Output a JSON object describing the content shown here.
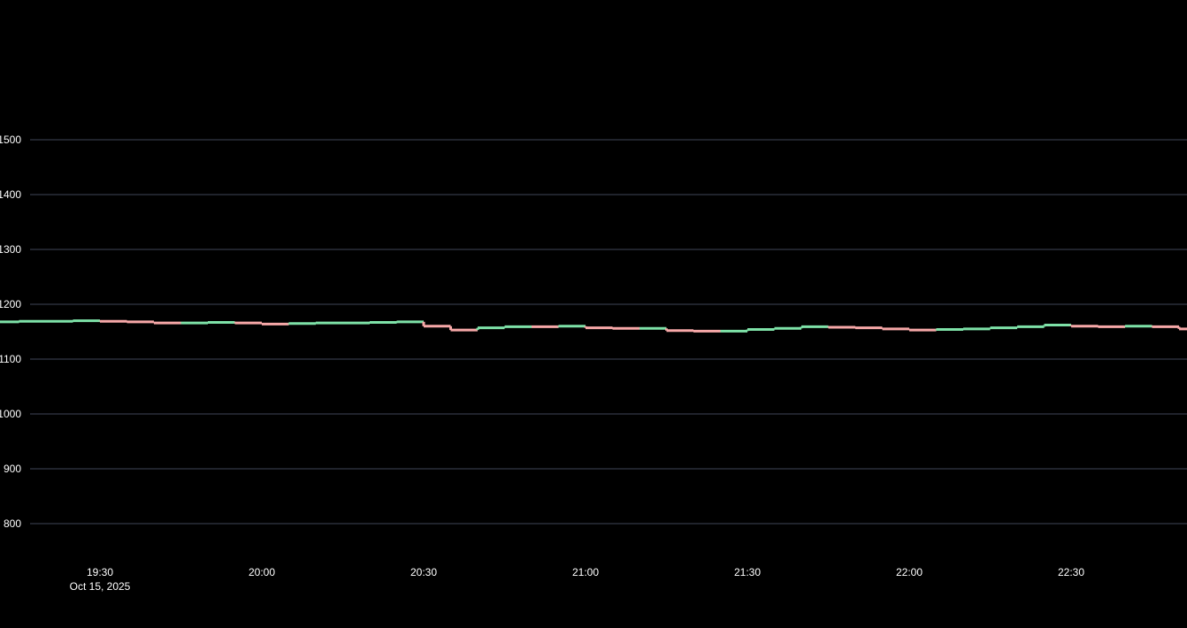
{
  "chart_data": {
    "type": "candlestick",
    "title": "",
    "xlabel": "",
    "ylabel": "",
    "x_range": [
      "2025-10-15T19:11",
      "2025-10-15T22:50"
    ],
    "y_range": [
      760,
      1500
    ],
    "y_ticks": [
      "1500",
      "1400",
      "1300",
      "1200",
      "1100",
      "1000",
      "900",
      "800"
    ],
    "y_tick_values": [
      1500,
      1400,
      1300,
      1200,
      1100,
      1000,
      900,
      800
    ],
    "x_ticks": [
      {
        "time": "2025-10-15T19:30",
        "label": "19:30",
        "sublabel": "Oct 15, 2025"
      },
      {
        "time": "2025-10-15T20:00",
        "label": "20:00",
        "sublabel": ""
      },
      {
        "time": "2025-10-15T20:30",
        "label": "20:30",
        "sublabel": ""
      },
      {
        "time": "2025-10-15T21:00",
        "label": "21:00",
        "sublabel": ""
      },
      {
        "time": "2025-10-15T21:30",
        "label": "21:30",
        "sublabel": ""
      },
      {
        "time": "2025-10-15T22:00",
        "label": "22:00",
        "sublabel": ""
      },
      {
        "time": "2025-10-15T22:30",
        "label": "22:30",
        "sublabel": ""
      }
    ],
    "grid": true,
    "colors": {
      "background": "#000000",
      "grid": "#2b2f3a",
      "text": "#ffffff",
      "up": "#7ee2a8",
      "down": "#f7a8a8"
    },
    "series": [
      {
        "name": "",
        "points": [
          {
            "t": "2025-10-15T19:11",
            "close": 1168,
            "dir": "up"
          },
          {
            "t": "2025-10-15T19:15",
            "close": 1169,
            "dir": "up"
          },
          {
            "t": "2025-10-15T19:20",
            "close": 1169,
            "dir": "up"
          },
          {
            "t": "2025-10-15T19:25",
            "close": 1170,
            "dir": "up"
          },
          {
            "t": "2025-10-15T19:30",
            "close": 1169,
            "dir": "down"
          },
          {
            "t": "2025-10-15T19:35",
            "close": 1168,
            "dir": "down"
          },
          {
            "t": "2025-10-15T19:40",
            "close": 1166,
            "dir": "down"
          },
          {
            "t": "2025-10-15T19:45",
            "close": 1166,
            "dir": "up"
          },
          {
            "t": "2025-10-15T19:50",
            "close": 1167,
            "dir": "up"
          },
          {
            "t": "2025-10-15T19:55",
            "close": 1166,
            "dir": "down"
          },
          {
            "t": "2025-10-15T20:00",
            "close": 1164,
            "dir": "down"
          },
          {
            "t": "2025-10-15T20:05",
            "close": 1165,
            "dir": "up"
          },
          {
            "t": "2025-10-15T20:10",
            "close": 1166,
            "dir": "up"
          },
          {
            "t": "2025-10-15T20:15",
            "close": 1166,
            "dir": "up"
          },
          {
            "t": "2025-10-15T20:20",
            "close": 1167,
            "dir": "up"
          },
          {
            "t": "2025-10-15T20:25",
            "close": 1168,
            "dir": "up"
          },
          {
            "t": "2025-10-15T20:30",
            "close": 1160,
            "dir": "down"
          },
          {
            "t": "2025-10-15T20:35",
            "close": 1153,
            "dir": "down"
          },
          {
            "t": "2025-10-15T20:40",
            "close": 1157,
            "dir": "up"
          },
          {
            "t": "2025-10-15T20:45",
            "close": 1159,
            "dir": "up"
          },
          {
            "t": "2025-10-15T20:50",
            "close": 1159,
            "dir": "down"
          },
          {
            "t": "2025-10-15T20:55",
            "close": 1160,
            "dir": "up"
          },
          {
            "t": "2025-10-15T21:00",
            "close": 1157,
            "dir": "down"
          },
          {
            "t": "2025-10-15T21:05",
            "close": 1156,
            "dir": "down"
          },
          {
            "t": "2025-10-15T21:10",
            "close": 1156,
            "dir": "up"
          },
          {
            "t": "2025-10-15T21:15",
            "close": 1152,
            "dir": "down"
          },
          {
            "t": "2025-10-15T21:20",
            "close": 1151,
            "dir": "down"
          },
          {
            "t": "2025-10-15T21:25",
            "close": 1151,
            "dir": "up"
          },
          {
            "t": "2025-10-15T21:30",
            "close": 1154,
            "dir": "up"
          },
          {
            "t": "2025-10-15T21:35",
            "close": 1156,
            "dir": "up"
          },
          {
            "t": "2025-10-15T21:40",
            "close": 1159,
            "dir": "up"
          },
          {
            "t": "2025-10-15T21:45",
            "close": 1158,
            "dir": "down"
          },
          {
            "t": "2025-10-15T21:50",
            "close": 1157,
            "dir": "down"
          },
          {
            "t": "2025-10-15T21:55",
            "close": 1155,
            "dir": "down"
          },
          {
            "t": "2025-10-15T22:00",
            "close": 1153,
            "dir": "down"
          },
          {
            "t": "2025-10-15T22:05",
            "close": 1154,
            "dir": "up"
          },
          {
            "t": "2025-10-15T22:10",
            "close": 1155,
            "dir": "up"
          },
          {
            "t": "2025-10-15T22:15",
            "close": 1157,
            "dir": "up"
          },
          {
            "t": "2025-10-15T22:20",
            "close": 1159,
            "dir": "up"
          },
          {
            "t": "2025-10-15T22:25",
            "close": 1162,
            "dir": "up"
          },
          {
            "t": "2025-10-15T22:30",
            "close": 1160,
            "dir": "down"
          },
          {
            "t": "2025-10-15T22:35",
            "close": 1159,
            "dir": "down"
          },
          {
            "t": "2025-10-15T22:40",
            "close": 1160,
            "dir": "up"
          },
          {
            "t": "2025-10-15T22:45",
            "close": 1159,
            "dir": "down"
          },
          {
            "t": "2025-10-15T22:50",
            "close": 1155,
            "dir": "down"
          }
        ]
      }
    ]
  }
}
